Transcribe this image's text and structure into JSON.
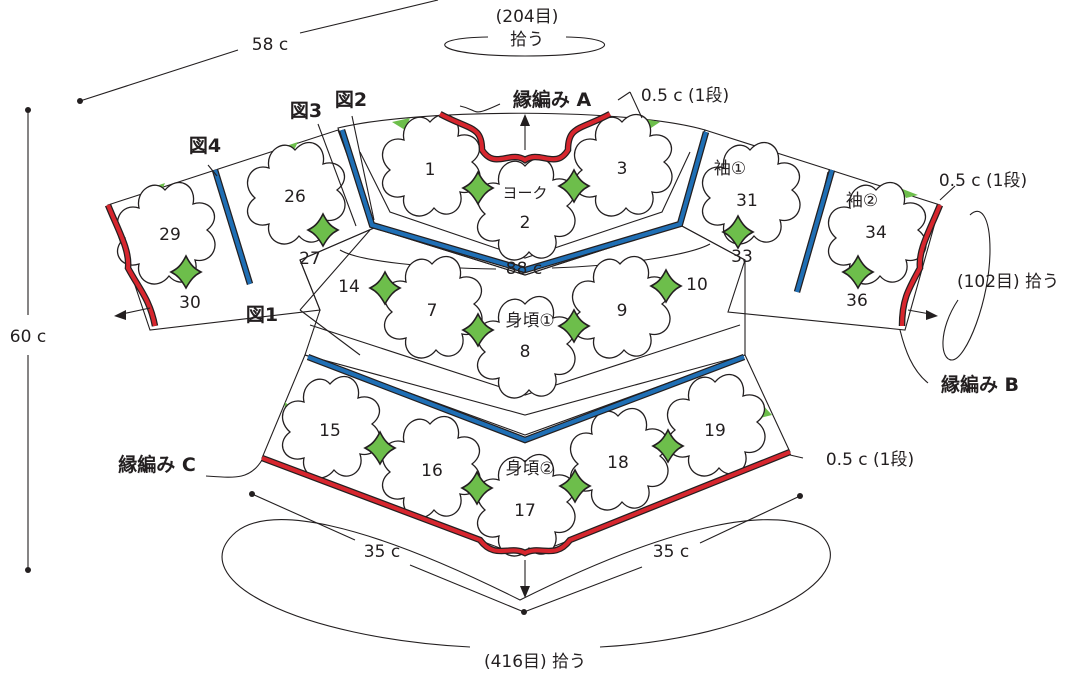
{
  "labels": {
    "top_stitches": "(204目)",
    "top_pickup": "拾う",
    "sleeve_width": "58 c",
    "length": "60 c",
    "yoke": "ヨーク",
    "yoke_width": "88 c",
    "body1": "身頃①",
    "body2": "身頃②",
    "sleeve1": "袖①",
    "sleeve2": "袖②",
    "edging_a": "縁編み A",
    "edging_b": "縁編み B",
    "edging_c": "縁編み C",
    "row_a": "0.5 c (1段)",
    "row_b": "0.5 c (1段)",
    "row_c": "0.5 c (1段)",
    "cuff_pickup": "(102目) 拾う",
    "hem_left": "35 c",
    "hem_right": "35 c",
    "hem_pickup": "(416目) 拾う",
    "fig1": "図1",
    "fig2": "図2",
    "fig3": "図3",
    "fig4": "図4"
  },
  "motifs": [
    "1",
    "2",
    "3",
    "7",
    "8",
    "9",
    "10",
    "14",
    "15",
    "16",
    "17",
    "18",
    "19",
    "26",
    "27",
    "29",
    "30",
    "31",
    "33",
    "34",
    "36"
  ],
  "colors": {
    "filler": "#6dbe4b",
    "edging": "#d7262e",
    "seam": "#1f6fb5",
    "ink": "#231f20"
  }
}
